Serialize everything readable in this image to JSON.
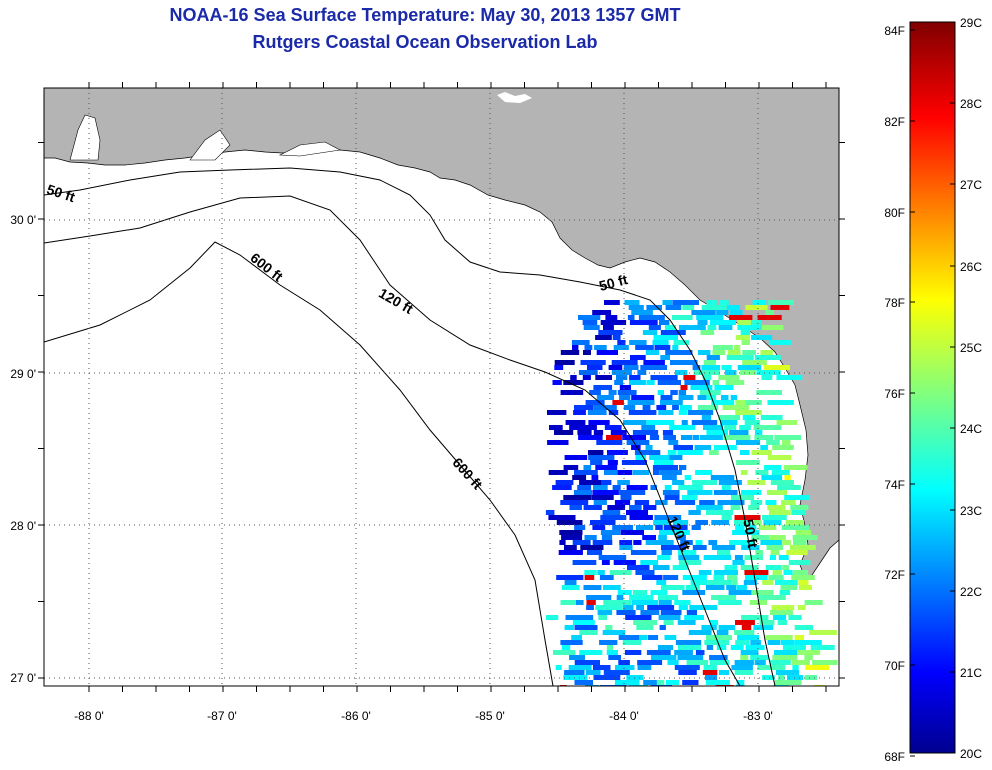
{
  "titles": {
    "line1": "NOAA-16 Sea Surface Temperature:  May 30, 2013 1357 GMT",
    "line2": "Rutgers Coastal Ocean Observation Lab"
  },
  "map": {
    "lon_labels": [
      "-88 0'",
      "-87 0'",
      "-86 0'",
      "-85 0'",
      "-84 0'",
      "-83 0'"
    ],
    "lat_labels": [
      "30 0'",
      "29 0'",
      "28 0'",
      "27 0'"
    ],
    "contour_labels": [
      "50 ft",
      "600 ft",
      "120 ft",
      "50 ft",
      "600 ft",
      "50 ft",
      "120 ft"
    ],
    "colors": {
      "land": "#b4b4b4",
      "water": "#ffffff"
    }
  },
  "colorbar": {
    "fahrenheit": [
      "84F",
      "82F",
      "80F",
      "78F",
      "76F",
      "74F",
      "72F",
      "70F",
      "68F"
    ],
    "celsius": [
      "29C",
      "28C",
      "27C",
      "26C",
      "25C",
      "24C",
      "23C",
      "22C",
      "21C",
      "20C"
    ]
  }
}
